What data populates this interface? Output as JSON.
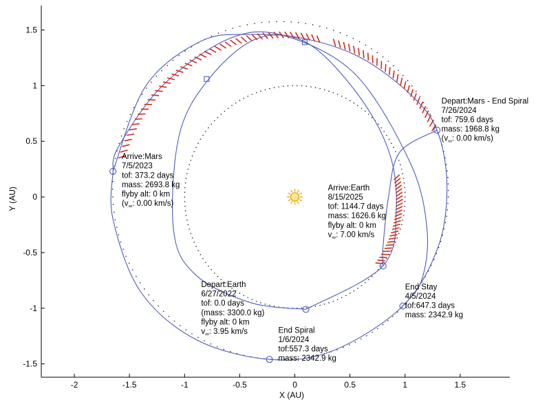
{
  "chart_data": {
    "type": "line",
    "title": "",
    "xlabel": "X (AU)",
    "ylabel": "Y (AU)",
    "xlim": [
      -2.3,
      1.95
    ],
    "ylim": [
      -1.62,
      1.72
    ],
    "xticks": [
      -2,
      -1.5,
      -1,
      -0.5,
      0,
      0.5,
      1,
      1.5
    ],
    "yticks": [
      -1.5,
      -1,
      -0.5,
      0,
      0.5,
      1,
      1.5
    ],
    "xtick_labels": [
      "-2",
      "-1.5",
      "-1",
      "-0.5",
      "0",
      "0.5",
      "1",
      "1.5"
    ],
    "ytick_labels": [
      "-1.5",
      "-1",
      "-0.5",
      "0",
      "0.5",
      "1",
      "1.5"
    ],
    "grid": false,
    "colors": {
      "trajectory": "#4c5bbd",
      "thrust": "#d02a1a",
      "orbit_dots": "#222222",
      "sun": "#f0a400",
      "sun_fill": "#fde9a2"
    },
    "sun": {
      "x": 0,
      "y": 0,
      "icon": "sun-icon"
    },
    "reference_orbits": [
      {
        "name": "earth-orbit",
        "radius": 1.0
      },
      {
        "name": "mars-orbit",
        "a": 1.524,
        "e": 0.0934,
        "perihelion_angle_deg": 336
      }
    ],
    "trajectory_legs": [
      {
        "name": "leg-1",
        "points": [
          [
            0.1,
            -1.01
          ],
          [
            0.8,
            -0.62
          ],
          [
            0.92,
            -0.1
          ],
          [
            0.85,
            0.42
          ],
          [
            0.55,
            0.95
          ],
          [
            0.1,
            1.39
          ],
          [
            -0.35,
            1.42
          ],
          [
            -0.78,
            1.06
          ],
          [
            -1.05,
            0.55
          ],
          [
            -1.1,
            -0.3
          ],
          [
            -0.9,
            -0.7
          ],
          [
            -0.4,
            -0.95
          ],
          [
            0.1,
            -1.01
          ]
        ]
      },
      {
        "name": "leg-2",
        "points": [
          [
            -1.65,
            0.23
          ],
          [
            -1.35,
            1.0
          ],
          [
            -0.85,
            1.4
          ],
          [
            -0.4,
            1.46
          ],
          [
            0.1,
            1.42
          ],
          [
            0.6,
            1.25
          ],
          [
            1.05,
            0.92
          ],
          [
            1.29,
            0.6
          ],
          [
            1.38,
            0.1
          ],
          [
            1.3,
            -0.45
          ],
          [
            0.98,
            -0.98
          ],
          [
            0.35,
            -1.38
          ],
          [
            -0.23,
            -1.46
          ],
          [
            -0.9,
            -1.28
          ],
          [
            -1.4,
            -0.85
          ],
          [
            -1.65,
            -0.2
          ],
          [
            -1.65,
            0.23
          ]
        ]
      },
      {
        "name": "leg-3",
        "points": [
          [
            0.98,
            -0.98
          ],
          [
            1.15,
            -0.75
          ],
          [
            1.2,
            -0.3
          ],
          [
            1.05,
            0.3
          ],
          [
            0.55,
            1.1
          ],
          [
            -0.1,
            1.45
          ],
          [
            -0.6,
            1.42
          ],
          [
            -1.2,
            1.0
          ],
          [
            -1.6,
            0.45
          ],
          [
            -1.65,
            0.23
          ]
        ]
      },
      {
        "name": "leg-4",
        "points": [
          [
            1.29,
            0.6
          ],
          [
            0.95,
            0.4
          ],
          [
            0.85,
            0.0
          ],
          [
            0.8,
            -0.45
          ],
          [
            0.8,
            -0.62
          ]
        ]
      }
    ],
    "thrust_arcs": [
      {
        "name": "thrust-arc-1",
        "from": [
          -1.6,
          0.35
        ],
        "to": [
          0.2,
          1.45
        ]
      },
      {
        "name": "thrust-arc-2",
        "from": [
          0.35,
          1.42
        ],
        "to": [
          1.28,
          0.65
        ]
      },
      {
        "name": "thrust-arc-3",
        "from": [
          0.95,
          0.2
        ],
        "to": [
          0.8,
          -0.6
        ]
      }
    ],
    "markers": [
      {
        "name": "marker-depart-earth",
        "shape": "circle",
        "x": 0.1,
        "y": -1.01
      },
      {
        "name": "marker-arrive-earth",
        "shape": "circle",
        "x": 0.8,
        "y": -0.62
      },
      {
        "name": "marker-end-stay",
        "shape": "circle",
        "x": 0.98,
        "y": -0.98
      },
      {
        "name": "marker-end-spiral",
        "shape": "circle",
        "x": -0.23,
        "y": -1.46
      },
      {
        "name": "marker-arrive-mars",
        "shape": "circle",
        "x": -1.65,
        "y": 0.23
      },
      {
        "name": "marker-depart-mars",
        "shape": "circle",
        "x": 1.29,
        "y": 0.6
      },
      {
        "name": "marker-square-1",
        "shape": "square",
        "x": -0.8,
        "y": 1.06
      },
      {
        "name": "marker-square-2",
        "shape": "square",
        "x": 0.09,
        "y": 1.39
      }
    ],
    "annotations": [
      {
        "name": "annotation-depart-mars",
        "x": 1.33,
        "y": 0.84,
        "lines": [
          "Depart:Mars - End Spiral",
          "7/26/2024",
          "tof: 759.6 days",
          "mass: 1968.8 kg",
          "(v__: 0.00 km/s)"
        ]
      },
      {
        "name": "annotation-arrive-mars",
        "x": -1.57,
        "y": 0.34,
        "lines": [
          "Arrive:Mars",
          "7/5/2023",
          "tof: 373.2 days",
          "mass: 2693.8 kg",
          "flyby alt: 0 km",
          "(v__: 0.00 km/s)"
        ]
      },
      {
        "name": "annotation-arrive-earth",
        "x": 0.3,
        "y": 0.06,
        "lines": [
          "Arrive:Earth",
          "8/15/2025",
          "tof: 1144.7 days",
          "mass: 1626.6 kg",
          "flyby alt: 0 km",
          "v__: 7.00 km/s"
        ]
      },
      {
        "name": "annotation-depart-earth",
        "x": -0.85,
        "y": -0.81,
        "lines": [
          "Depart:Earth",
          "6/27/2022",
          "tof: 0.0 days",
          "(mass: 3300.0 kg)",
          "flyby alt: 0 km",
          "v__: 3.95 km/s"
        ]
      },
      {
        "name": "annotation-end-stay",
        "x": 1.0,
        "y": -0.83,
        "lines": [
          "End Stay",
          "4/5/2024",
          "tof:647.3 days",
          "mass: 2342.9 kg"
        ]
      },
      {
        "name": "annotation-end-spiral",
        "x": -0.15,
        "y": -1.22,
        "lines": [
          "End Spiral",
          "1/6/2024",
          "tof:557.3 days",
          "mass: 2342.9 kg"
        ]
      }
    ]
  }
}
